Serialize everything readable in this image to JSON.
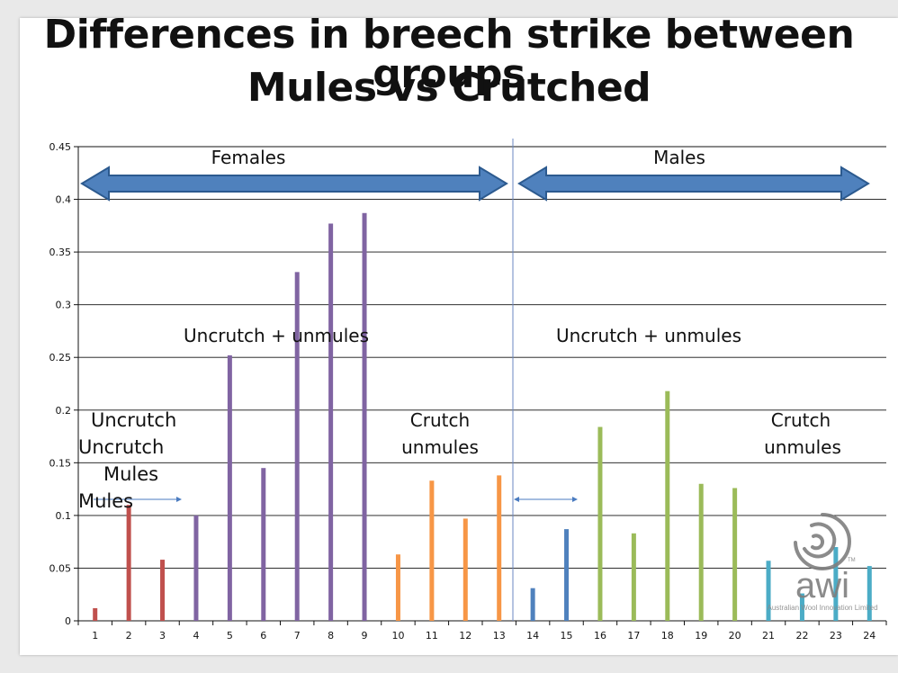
{
  "title": {
    "line1": "Differences in breech strike between groups",
    "line2": "Mules vs Crutched"
  },
  "labels": {
    "females": "Females",
    "males": "Males",
    "uncrutch_unmules_f": "Uncrutch + unmules",
    "uncrutch_unmules_m": "Uncrutch + unmules",
    "uncrutch_1": "Uncrutch",
    "uncrutch_2": "Uncrutch",
    "mules_1": "Mules",
    "mules_2": "Mules",
    "crutch_f": "Crutch",
    "unmules_f": "unmules",
    "crutch_m": "Crutch",
    "unmules_m": "unmules"
  },
  "logo": {
    "name": "awi",
    "caption": "Australian Wool Innovation Limited",
    "mark": "TM"
  },
  "colors": {
    "arrow_fill": "#4f81bd",
    "arrow_stroke": "#2c5a8f",
    "divider": "#6b87c0",
    "small_arrow": "#4a7bc0"
  },
  "chart_data": {
    "type": "bar",
    "categories": [
      "1",
      "2",
      "3",
      "4",
      "5",
      "6",
      "7",
      "8",
      "9",
      "10",
      "11",
      "12",
      "13",
      "14",
      "15",
      "16",
      "17",
      "18",
      "19",
      "20",
      "21",
      "22",
      "23",
      "24"
    ],
    "values": [
      0.012,
      0.11,
      0.058,
      0.1,
      0.252,
      0.145,
      0.331,
      0.377,
      0.387,
      0.063,
      0.133,
      0.097,
      0.138,
      0.031,
      0.087,
      0.184,
      0.083,
      0.218,
      0.13,
      0.126,
      0.057,
      0.026,
      0.07,
      0.052
    ],
    "colors": [
      "#c0504d",
      "#c0504d",
      "#c0504d",
      "#8064a2",
      "#8064a2",
      "#8064a2",
      "#8064a2",
      "#8064a2",
      "#8064a2",
      "#f79646",
      "#f79646",
      "#f79646",
      "#f79646",
      "#4f81bd",
      "#4f81bd",
      "#9bbb59",
      "#9bbb59",
      "#9bbb59",
      "#9bbb59",
      "#9bbb59",
      "#4bacc6",
      "#4bacc6",
      "#4bacc6",
      "#4bacc6"
    ],
    "yticks": [
      "0",
      "0.05",
      "0.1",
      "0.15",
      "0.2",
      "0.25",
      "0.3",
      "0.35",
      "0.4",
      "0.45"
    ],
    "ylim": [
      0,
      0.45
    ],
    "grid": true,
    "title": "",
    "xlabel": "",
    "ylabel": ""
  }
}
